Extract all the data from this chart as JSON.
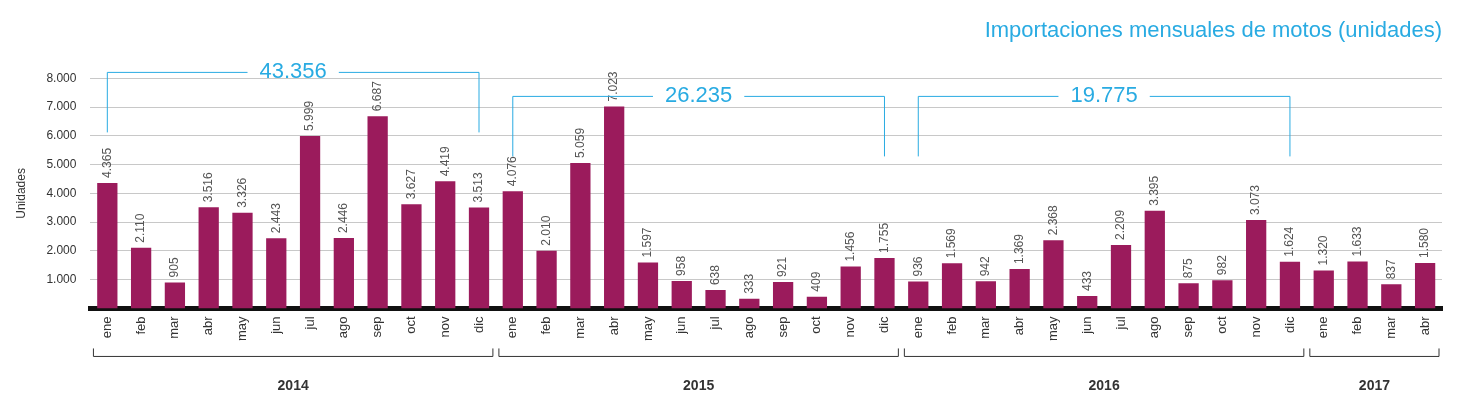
{
  "chart_data": {
    "type": "bar",
    "title": "Importaciones mensuales de motos (unidades)",
    "ylabel": "Unidades",
    "categories": [
      "ene",
      "feb",
      "mar",
      "abr",
      "may",
      "jun",
      "jul",
      "ago",
      "sep",
      "oct",
      "nov",
      "dic",
      "ene",
      "feb",
      "mar",
      "abr",
      "may",
      "jun",
      "jul",
      "ago",
      "sep",
      "oct",
      "nov",
      "dic",
      "ene",
      "feb",
      "mar",
      "abr",
      "may",
      "jun",
      "jul",
      "ago",
      "sep",
      "oct",
      "nov",
      "dic",
      "ene",
      "feb",
      "mar",
      "abr"
    ],
    "values": [
      4365,
      2110,
      905,
      3516,
      3326,
      2443,
      5999,
      2446,
      6687,
      3627,
      4419,
      3513,
      4076,
      2010,
      5059,
      7023,
      1597,
      958,
      638,
      333,
      921,
      409,
      1456,
      1755,
      936,
      1569,
      942,
      1369,
      2368,
      433,
      2209,
      3395,
      875,
      982,
      3073,
      1624,
      1320,
      1633,
      837,
      1580
    ],
    "value_labels": [
      "4.365",
      "2.110",
      "905",
      "3.516",
      "3.326",
      "2.443",
      "5.999",
      "2.446",
      "6.687",
      "3.627",
      "4.419",
      "3.513",
      "4.076",
      "2.010",
      "5.059",
      "7.023",
      "1.597",
      "958",
      "638",
      "333",
      "921",
      "409",
      "1.456",
      "1.755",
      "936",
      "1.569",
      "942",
      "1.369",
      "2.368",
      "433",
      "2.209",
      "3.395",
      "875",
      "982",
      "3.073",
      "1.624",
      "1.320",
      "1.633",
      "837",
      "1.580"
    ],
    "color": "#9b1b5c",
    "ylim": [
      0,
      8000
    ],
    "yticks": [
      {
        "value": 1000,
        "label": "1.000"
      },
      {
        "value": 2000,
        "label": "2.000"
      },
      {
        "value": 3000,
        "label": "3.000"
      },
      {
        "value": 4000,
        "label": "4.000"
      },
      {
        "value": 5000,
        "label": "5.000"
      },
      {
        "value": 6000,
        "label": "6.000"
      },
      {
        "value": 7000,
        "label": "7.000"
      },
      {
        "value": 8000,
        "label": "8.000"
      }
    ],
    "grid": "y",
    "annotations": [
      "43.356",
      "26.235",
      "19.775",
      "2014",
      "2015",
      "2016",
      "2017"
    ]
  }
}
